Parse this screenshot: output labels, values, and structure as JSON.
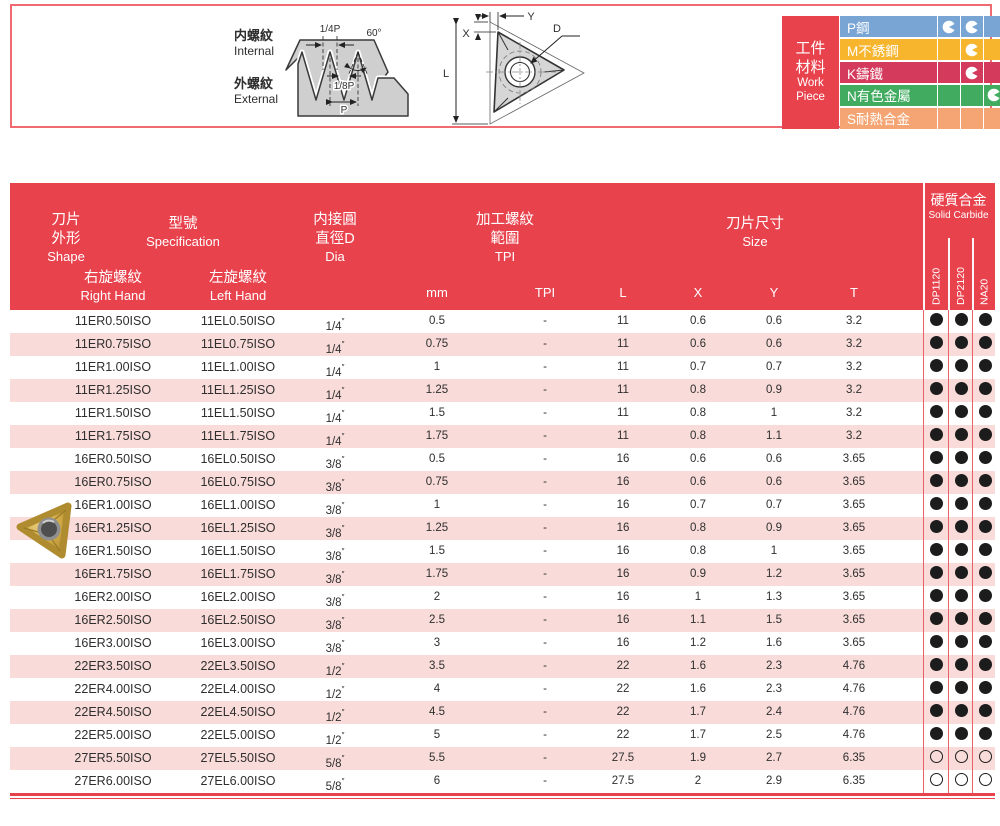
{
  "diagram": {
    "internal_zh": "内螺紋",
    "internal_en": "Internal",
    "external_zh": "外螺紋",
    "external_en": "External",
    "dim_quarter_p": "1/4P",
    "dim_angle": "60°",
    "dim_eighth_p": "1/8P",
    "dim_p": "P",
    "insert": {
      "y": "Y",
      "x": "X",
      "l": "L",
      "d": "D"
    }
  },
  "workpiece": {
    "label_zh1": "工件",
    "label_zh2": "材料",
    "label_en1": "Work",
    "label_en2": "Piece",
    "rows": [
      {
        "name": "P鋼",
        "color": "#79a5d5",
        "marks": [
          true,
          true,
          false
        ]
      },
      {
        "name": "M不銹鋼",
        "color": "#f6b52c",
        "marks": [
          false,
          true,
          false
        ]
      },
      {
        "name": "K鑄鐵",
        "color": "#d43a5c",
        "marks": [
          false,
          true,
          false
        ]
      },
      {
        "name": "N有色金屬",
        "color": "#41ab60",
        "marks": [
          false,
          false,
          true
        ]
      },
      {
        "name": "S耐熱合金",
        "color": "#f4a573",
        "marks": [
          false,
          false,
          false
        ]
      }
    ]
  },
  "table": {
    "header": {
      "shape_zh1": "刀片",
      "shape_zh2": "外形",
      "shape_en": "Shape",
      "spec_zh": "型號",
      "spec_en": "Specification",
      "rh_zh": "右旋螺紋",
      "rh_en": "Right Hand",
      "lh_zh": "左旋螺紋",
      "lh_en": "Left Hand",
      "dia_zh1": "内接圓",
      "dia_zh2": "直徑D",
      "dia_en": "Dia",
      "thread_zh1": "加工螺紋",
      "thread_zh2": "範圍",
      "thread_en": "TPI",
      "size_zh": "刀片尺寸",
      "size_en": "Size",
      "sub_mm": "mm",
      "sub_tpi": "TPI",
      "sub_l": "L",
      "sub_x": "X",
      "sub_y": "Y",
      "sub_t": "T",
      "carbide_zh": "硬質合金",
      "carbide_en": "Solid Carbide",
      "grades": [
        "DP1120",
        "DP2120",
        "NA20"
      ]
    },
    "rows": [
      {
        "rh": "11ER0.50ISO",
        "lh": "11EL0.50ISO",
        "dia": "1/4″",
        "mm": "0.5",
        "tpi": "-",
        "l": "11",
        "x": "0.6",
        "y": "0.6",
        "t": "3.2",
        "dot": "filled"
      },
      {
        "rh": "11ER0.75ISO",
        "lh": "11EL0.75ISO",
        "dia": "1/4″",
        "mm": "0.75",
        "tpi": "-",
        "l": "11",
        "x": "0.6",
        "y": "0.6",
        "t": "3.2",
        "dot": "filled"
      },
      {
        "rh": "11ER1.00ISO",
        "lh": "11EL1.00ISO",
        "dia": "1/4″",
        "mm": "1",
        "tpi": "-",
        "l": "11",
        "x": "0.7",
        "y": "0.7",
        "t": "3.2",
        "dot": "filled"
      },
      {
        "rh": "11ER1.25ISO",
        "lh": "11EL1.25ISO",
        "dia": "1/4″",
        "mm": "1.25",
        "tpi": "-",
        "l": "11",
        "x": "0.8",
        "y": "0.9",
        "t": "3.2",
        "dot": "filled"
      },
      {
        "rh": "11ER1.50ISO",
        "lh": "11EL1.50ISO",
        "dia": "1/4″",
        "mm": "1.5",
        "tpi": "-",
        "l": "11",
        "x": "0.8",
        "y": "1",
        "t": "3.2",
        "dot": "filled"
      },
      {
        "rh": "11ER1.75ISO",
        "lh": "11EL1.75ISO",
        "dia": "1/4″",
        "mm": "1.75",
        "tpi": "-",
        "l": "11",
        "x": "0.8",
        "y": "1.1",
        "t": "3.2",
        "dot": "filled"
      },
      {
        "rh": "16ER0.50ISO",
        "lh": "16EL0.50ISO",
        "dia": "3/8″",
        "mm": "0.5",
        "tpi": "-",
        "l": "16",
        "x": "0.6",
        "y": "0.6",
        "t": "3.65",
        "dot": "filled"
      },
      {
        "rh": "16ER0.75ISO",
        "lh": "16EL0.75ISO",
        "dia": "3/8″",
        "mm": "0.75",
        "tpi": "-",
        "l": "16",
        "x": "0.6",
        "y": "0.6",
        "t": "3.65",
        "dot": "filled"
      },
      {
        "rh": "16ER1.00ISO",
        "lh": "16EL1.00ISO",
        "dia": "3/8″",
        "mm": "1",
        "tpi": "-",
        "l": "16",
        "x": "0.7",
        "y": "0.7",
        "t": "3.65",
        "dot": "filled"
      },
      {
        "rh": "16ER1.25ISO",
        "lh": "16EL1.25ISO",
        "dia": "3/8″",
        "mm": "1.25",
        "tpi": "-",
        "l": "16",
        "x": "0.8",
        "y": "0.9",
        "t": "3.65",
        "dot": "filled"
      },
      {
        "rh": "16ER1.50ISO",
        "lh": "16EL1.50ISO",
        "dia": "3/8″",
        "mm": "1.5",
        "tpi": "-",
        "l": "16",
        "x": "0.8",
        "y": "1",
        "t": "3.65",
        "dot": "filled"
      },
      {
        "rh": "16ER1.75ISO",
        "lh": "16EL1.75ISO",
        "dia": "3/8″",
        "mm": "1.75",
        "tpi": "-",
        "l": "16",
        "x": "0.9",
        "y": "1.2",
        "t": "3.65",
        "dot": "filled"
      },
      {
        "rh": "16ER2.00ISO",
        "lh": "16EL2.00ISO",
        "dia": "3/8″",
        "mm": "2",
        "tpi": "-",
        "l": "16",
        "x": "1",
        "y": "1.3",
        "t": "3.65",
        "dot": "filled"
      },
      {
        "rh": "16ER2.50ISO",
        "lh": "16EL2.50ISO",
        "dia": "3/8″",
        "mm": "2.5",
        "tpi": "-",
        "l": "16",
        "x": "1.1",
        "y": "1.5",
        "t": "3.65",
        "dot": "filled"
      },
      {
        "rh": "16ER3.00ISO",
        "lh": "16EL3.00ISO",
        "dia": "3/8″",
        "mm": "3",
        "tpi": "-",
        "l": "16",
        "x": "1.2",
        "y": "1.6",
        "t": "3.65",
        "dot": "filled"
      },
      {
        "rh": "22ER3.50ISO",
        "lh": "22EL3.50ISO",
        "dia": "1/2″",
        "mm": "3.5",
        "tpi": "-",
        "l": "22",
        "x": "1.6",
        "y": "2.3",
        "t": "4.76",
        "dot": "filled"
      },
      {
        "rh": "22ER4.00ISO",
        "lh": "22EL4.00ISO",
        "dia": "1/2″",
        "mm": "4",
        "tpi": "-",
        "l": "22",
        "x": "1.6",
        "y": "2.3",
        "t": "4.76",
        "dot": "filled"
      },
      {
        "rh": "22ER4.50ISO",
        "lh": "22EL4.50ISO",
        "dia": "1/2″",
        "mm": "4.5",
        "tpi": "-",
        "l": "22",
        "x": "1.7",
        "y": "2.4",
        "t": "4.76",
        "dot": "filled"
      },
      {
        "rh": "22ER5.00ISO",
        "lh": "22EL5.00ISO",
        "dia": "1/2″",
        "mm": "5",
        "tpi": "-",
        "l": "22",
        "x": "1.7",
        "y": "2.5",
        "t": "4.76",
        "dot": "filled"
      },
      {
        "rh": "27ER5.50ISO",
        "lh": "27EL5.50ISO",
        "dia": "5/8″",
        "mm": "5.5",
        "tpi": "-",
        "l": "27.5",
        "x": "1.9",
        "y": "2.7",
        "t": "6.35",
        "dot": "open"
      },
      {
        "rh": "27ER6.00ISO",
        "lh": "27EL6.00ISO",
        "dia": "5/8″",
        "mm": "6",
        "tpi": "-",
        "l": "27.5",
        "x": "2",
        "y": "2.9",
        "t": "6.35",
        "dot": "open"
      }
    ]
  },
  "colors": {
    "accent_red": "#e8424d",
    "row_pink": "#f9dcd9",
    "box_border": "#f06a72"
  }
}
